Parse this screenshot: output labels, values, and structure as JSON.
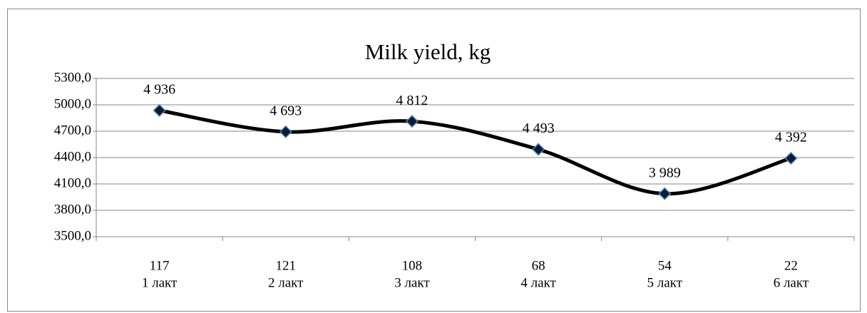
{
  "chart_data": {
    "type": "line",
    "title": "Milk yield, kg",
    "categories": [
      [
        "117",
        "1 лакт"
      ],
      [
        "121",
        "2 лакт"
      ],
      [
        "108",
        "3 лакт"
      ],
      [
        "68",
        "4 лакт"
      ],
      [
        "54",
        "5 лакт"
      ],
      [
        "22",
        "6 лакт"
      ]
    ],
    "series": [
      {
        "name": "Milk yield, kg",
        "color": "#000000",
        "marker_color": "#0d1b33",
        "marker_edge": "#4f81bd",
        "values": [
          4936,
          4693,
          4812,
          4493,
          3989,
          4392
        ],
        "value_labels": [
          "4 936",
          "4 693",
          "4 812",
          "4 493",
          "3 989",
          "4 392"
        ]
      }
    ],
    "ylim": [
      3500,
      5300
    ],
    "yticks": [
      {
        "value": 3500,
        "label": "3500,0"
      },
      {
        "value": 3800,
        "label": "3800,0"
      },
      {
        "value": 4100,
        "label": "4100,0"
      },
      {
        "value": 4400,
        "label": "4400,0"
      },
      {
        "value": 4700,
        "label": "4700,0"
      },
      {
        "value": 5000,
        "label": "5000,0"
      },
      {
        "value": 5300,
        "label": "5300,0"
      }
    ],
    "grid": true,
    "smooth": true
  }
}
